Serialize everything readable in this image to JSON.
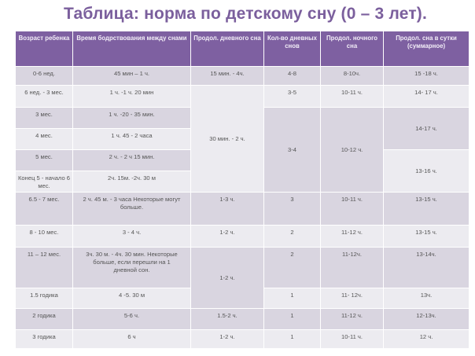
{
  "title": "Таблица: норма по детскому сну (0 – 3 лет).",
  "headers": [
    "Возраст ребенка",
    "Время бодрствования между снами",
    "Продол. дневного сна",
    "Кол-во дневных снов",
    "Продол. ночного сна",
    "Продол. сна в сутки (суммарное)"
  ],
  "rows": [
    {
      "age": "0-6 нед.",
      "wake": "45 мин – 1 ч.",
      "day": "15 мин. -  4ч.",
      "naps": "4-8",
      "night": "8-10ч.",
      "total": "15 -18 ч."
    },
    {
      "age": "6 нед. - 3 мес.",
      "wake": "1 ч. -1 ч. 20 мин",
      "day": "30 мин. - 2 ч.",
      "naps": "3-5",
      "night": "10-11 ч.",
      "total": "14- 17 ч."
    },
    {
      "age": "3 мес.",
      "wake": "1 ч. -20 - 35 мин.",
      "naps": "3-4",
      "night": "10-12 ч.",
      "total": "14-17 ч."
    },
    {
      "age": "4 мес.",
      "wake": "1 ч. 45 - 2 часа"
    },
    {
      "age": "5 мес.",
      "wake": "2 ч. - 2 ч 15 мин.",
      "total": "13-16 ч."
    },
    {
      "age": "Конец 5 - начало 6 мес.",
      "wake": "2ч. 15м. -2ч. 30 м"
    },
    {
      "age": "6.5 - 7 мес.",
      "wake": "2 ч. 45 м. - 3 часа Некоторые могут  больше.",
      "day": "1-3  ч.",
      "naps": "3",
      "night": "10-11 ч.",
      "total": "13-15 ч."
    },
    {
      "age": "8 - 10 мес.",
      "wake": "3 - 4 ч.",
      "day": "1-2 ч.",
      "naps": "2",
      "night": "11-12 ч.",
      "total": "13-15 ч."
    },
    {
      "age": "11 – 12 мес.",
      "wake": "3ч. 30 м. - 4ч. 30 мин.  Некоторые больше, если перешли на 1 дневной сон.",
      "day": "1-2 ч.",
      "naps": "2",
      "night": "11-12ч.",
      "total": "13-14ч."
    },
    {
      "age": "1.5 годика",
      "wake": "4 -5. 30 м",
      "naps": "1",
      "night": "11- 12ч.",
      "total": "13ч."
    },
    {
      "age": "2 годика",
      "wake": "5-6  ч.",
      "day": "1.5-2 ч.",
      "naps": "1",
      "night": "11-12 ч.",
      "total": "12-13ч."
    },
    {
      "age": "3 годика",
      "wake": "6 ч",
      "day": "1-2 ч.",
      "naps": "1",
      "night": "10-11 ч.",
      "total": "12 ч."
    }
  ]
}
